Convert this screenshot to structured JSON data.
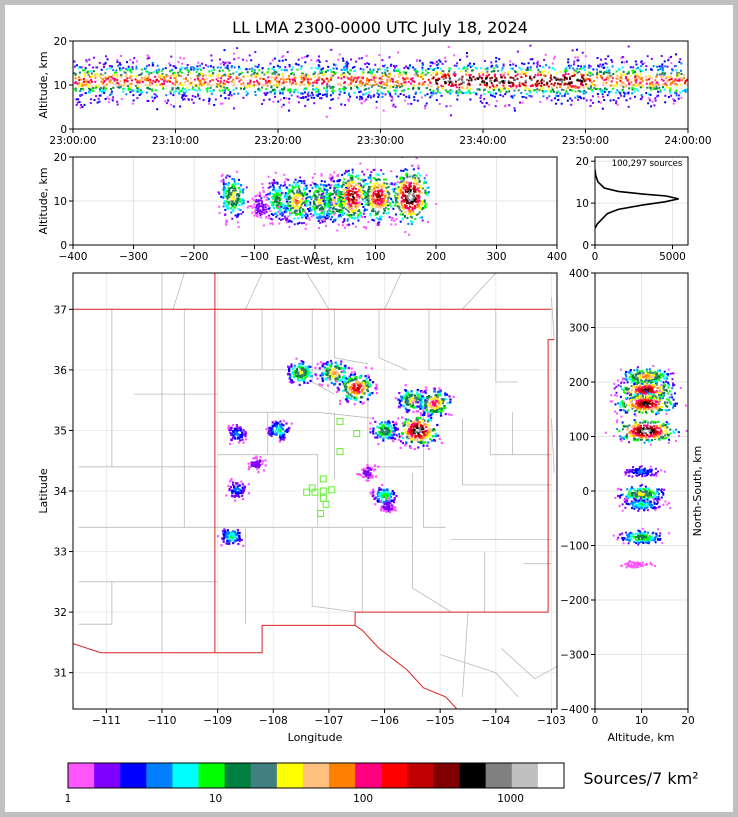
{
  "title": "LL LMA 2300-0000 UTC July 18, 2024",
  "colors": {
    "scale": [
      "#ff55ff",
      "#8000ff",
      "#0000ff",
      "#0080ff",
      "#00ffff",
      "#00ff00",
      "#008040",
      "#408080",
      "#ffff00",
      "#ffc080",
      "#ff8000",
      "#ff0080",
      "#ff0000",
      "#c00000",
      "#800000",
      "#000000",
      "#808080",
      "#c0c0c0",
      "#ffffff"
    ],
    "border": "#dd2222",
    "county": "#bbbbbb",
    "station": "#66ee33"
  },
  "chart_data": [
    {
      "name": "time-height",
      "type": "heatmap",
      "ylabel": "Altitude, km",
      "xlabel": "",
      "x_ticks": [
        "23:00:00",
        "23:10:00",
        "23:20:00",
        "23:30:00",
        "23:40:00",
        "23:50:00",
        "24:00:00"
      ],
      "y_ticks": [
        "0",
        "10",
        "20"
      ],
      "xlim": [
        "23:00:00",
        "24:00:00"
      ],
      "ylim": [
        0,
        20
      ],
      "band_center_km": 11,
      "peak_time_range": [
        "23:35:00",
        "23:50:00"
      ]
    },
    {
      "name": "east-west-altitude",
      "type": "heatmap",
      "xlabel": "East-West, km",
      "ylabel": "Altitude, km",
      "x_ticks": [
        "−400",
        "−300",
        "−200",
        "−100",
        "0",
        "100",
        "200",
        "300",
        "400"
      ],
      "y_ticks": [
        "0",
        "10",
        "20"
      ],
      "xlim": [
        -400,
        400
      ],
      "ylim": [
        0,
        20
      ],
      "cells": [
        {
          "x": -135,
          "z": 11,
          "n": 0.5
        },
        {
          "x": -90,
          "z": 9,
          "n": 0.1
        },
        {
          "x": -62,
          "z": 10,
          "n": 0.4
        },
        {
          "x": -30,
          "z": 10,
          "n": 0.6
        },
        {
          "x": 8,
          "z": 10,
          "n": 0.5
        },
        {
          "x": 35,
          "z": 10,
          "n": 0.55
        },
        {
          "x": 62,
          "z": 11,
          "n": 0.85
        },
        {
          "x": 105,
          "z": 11,
          "n": 0.8
        },
        {
          "x": 158,
          "z": 11,
          "n": 1.0
        }
      ]
    },
    {
      "name": "altitude-histogram",
      "type": "line",
      "annotation": "100,297 sources",
      "x_ticks": [
        "0",
        "5000"
      ],
      "y_ticks": [
        "0",
        "10",
        "20"
      ],
      "xlim": [
        0,
        6000
      ],
      "ylim": [
        0,
        21
      ],
      "points": [
        [
          0,
          4
        ],
        [
          150,
          5
        ],
        [
          400,
          6
        ],
        [
          800,
          7.5
        ],
        [
          1500,
          8.5
        ],
        [
          3000,
          9.5
        ],
        [
          4500,
          10.3
        ],
        [
          5400,
          11
        ],
        [
          4600,
          11.7
        ],
        [
          3000,
          12.2
        ],
        [
          1500,
          12.8
        ],
        [
          600,
          13.6
        ],
        [
          200,
          15
        ],
        [
          50,
          16.5
        ],
        [
          0,
          18
        ]
      ]
    },
    {
      "name": "plan-view",
      "type": "heatmap",
      "xlabel": "Longitude",
      "ylabel": "Latitude",
      "x_ticks": [
        "−111",
        "−110",
        "−109",
        "−108",
        "−107",
        "−106",
        "−105",
        "−104",
        "−103"
      ],
      "y_ticks": [
        "31",
        "32",
        "33",
        "34",
        "35",
        "36",
        "37"
      ],
      "xlim": [
        -111.6,
        -102.9
      ],
      "ylim": [
        30.4,
        37.6
      ],
      "cells": [
        {
          "lon": -107.5,
          "lat": 35.95,
          "n": 0.5
        },
        {
          "lon": -106.9,
          "lat": 35.95,
          "n": 0.6
        },
        {
          "lon": -106.5,
          "lat": 35.7,
          "n": 0.8
        },
        {
          "lon": -105.5,
          "lat": 35.5,
          "n": 0.55
        },
        {
          "lon": -105.1,
          "lat": 35.45,
          "n": 0.7
        },
        {
          "lon": -105.4,
          "lat": 35.0,
          "n": 1.0
        },
        {
          "lon": -106.0,
          "lat": 35.0,
          "n": 0.45
        },
        {
          "lon": -107.9,
          "lat": 35.0,
          "n": 0.3
        },
        {
          "lon": -108.65,
          "lat": 34.95,
          "n": 0.2
        },
        {
          "lon": -106.0,
          "lat": 33.92,
          "n": 0.35
        },
        {
          "lon": -108.65,
          "lat": 34.02,
          "n": 0.2
        },
        {
          "lon": -108.75,
          "lat": 33.25,
          "n": 0.3
        },
        {
          "lon": -108.3,
          "lat": 34.45,
          "n": 0.1
        },
        {
          "lon": -105.95,
          "lat": 33.75,
          "n": 0.1
        },
        {
          "lon": -106.3,
          "lat": 34.3,
          "n": 0.1
        }
      ],
      "stations": [
        [
          -106.8,
          35.15
        ],
        [
          -106.5,
          34.95
        ],
        [
          -106.8,
          34.65
        ],
        [
          -107.1,
          34.2
        ],
        [
          -107.3,
          34.05
        ],
        [
          -107.4,
          33.98
        ],
        [
          -107.25,
          33.98
        ],
        [
          -107.1,
          34.0
        ],
        [
          -106.95,
          34.02
        ],
        [
          -107.1,
          33.88
        ],
        [
          -107.05,
          33.78
        ],
        [
          -107.15,
          33.63
        ]
      ]
    },
    {
      "name": "altitude-north-south",
      "type": "heatmap",
      "xlabel": "Altitude, km",
      "ylabel": "North-South, km",
      "x_ticks": [
        "0",
        "10",
        "20"
      ],
      "y_ticks": [
        "−400",
        "−300",
        "−200",
        "−100",
        "0",
        "100",
        "200",
        "300",
        "400"
      ],
      "xlim": [
        0,
        20
      ],
      "ylim": [
        -400,
        400
      ],
      "cells": [
        {
          "z": 11,
          "y": 210,
          "n": 0.6
        },
        {
          "z": 11,
          "y": 185,
          "n": 0.85
        },
        {
          "z": 11,
          "y": 160,
          "n": 0.9
        },
        {
          "z": 11,
          "y": 110,
          "n": 1.0
        },
        {
          "z": 10,
          "y": 35,
          "n": 0.2
        },
        {
          "z": 10,
          "y": -5,
          "n": 0.5
        },
        {
          "z": 10,
          "y": -25,
          "n": 0.3
        },
        {
          "z": 10,
          "y": -85,
          "n": 0.4
        },
        {
          "z": 9,
          "y": -135,
          "n": 0.05
        }
      ]
    }
  ],
  "colorbar": {
    "label": "Sources/7 km²",
    "ticks": [
      "1",
      "10",
      "100",
      "1000"
    ]
  }
}
